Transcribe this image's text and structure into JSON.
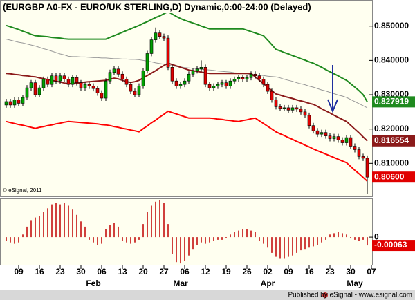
{
  "chart_data": {
    "type": "candlestick",
    "title": "(EURGBP A0-FX - EURO/UK STERLING,D) Dynamic,0:00-24:00 (Delayed)",
    "copyright": "© eSignal, 2011",
    "footer": "Published by eSignal - www.esignal.com",
    "categories": [
      null,
      null,
      null,
      "09",
      null,
      null,
      null,
      null,
      "16",
      null,
      null,
      null,
      null,
      "23",
      null,
      null,
      null,
      null,
      "30",
      null,
      null,
      null,
      null,
      "06",
      null,
      null,
      null,
      null,
      "13",
      null,
      null,
      null,
      null,
      "20",
      null,
      null,
      null,
      null,
      "27",
      null,
      null,
      null,
      null,
      "06",
      null,
      null,
      null,
      null,
      "12",
      null,
      null,
      null,
      null,
      "19",
      null,
      null,
      null,
      null,
      "26",
      null,
      null,
      null,
      null,
      "02",
      null,
      null,
      null,
      null,
      "09",
      null,
      null,
      null,
      null,
      "16",
      null,
      null,
      null,
      null,
      "23",
      null,
      null,
      null,
      null,
      "30",
      null,
      null,
      null,
      null,
      "07"
    ],
    "month_labels": [
      null,
      null,
      null,
      null,
      null,
      null,
      null,
      null,
      null,
      null,
      null,
      null,
      null,
      null,
      null,
      null,
      null,
      null,
      null,
      null,
      null,
      "Feb",
      null,
      null,
      null,
      null,
      null,
      null,
      null,
      null,
      null,
      null,
      null,
      null,
      null,
      null,
      null,
      null,
      null,
      null,
      null,
      null,
      "Mar",
      null,
      null,
      null,
      null,
      null,
      null,
      null,
      null,
      null,
      null,
      null,
      null,
      null,
      null,
      null,
      null,
      null,
      null,
      null,
      null,
      "Apr",
      null,
      null,
      null,
      null,
      null,
      null,
      null,
      null,
      null,
      null,
      null,
      null,
      null,
      null,
      null,
      null,
      null,
      null,
      null,
      null,
      "May",
      null,
      null,
      null,
      null
    ],
    "up_color": "#00a000",
    "down_color": "#e00000",
    "candles": {
      "open": [
        0.827,
        0.828,
        0.827,
        0.8285,
        0.8275,
        0.8292,
        0.832,
        0.8335,
        0.83,
        0.832,
        0.8345,
        0.833,
        0.8355,
        0.834,
        0.8355,
        0.8345,
        0.833,
        0.835,
        0.8335,
        0.832,
        0.833,
        0.8325,
        0.8318,
        0.8305,
        0.829,
        0.834,
        0.8365,
        0.8375,
        0.836,
        0.8345,
        0.833,
        0.831,
        0.83,
        0.8325,
        0.837,
        0.842,
        0.846,
        0.848,
        0.847,
        0.8465,
        0.838,
        0.834,
        0.8325,
        0.833,
        0.834,
        0.836,
        0.837,
        0.8375,
        0.838,
        0.833,
        0.832,
        0.8325,
        0.833,
        0.8335,
        0.8325,
        0.834,
        0.8345,
        0.835,
        0.8345,
        0.835,
        0.836,
        0.8355,
        0.8345,
        0.833,
        0.831,
        0.8285,
        0.8265,
        0.826,
        0.8262,
        0.8255,
        0.8262,
        0.8258,
        0.825,
        0.824,
        0.821,
        0.8195,
        0.8185,
        0.819,
        0.818,
        0.8172,
        0.8178,
        0.8168,
        0.816,
        0.8175,
        0.815,
        0.814,
        0.812,
        0.8115,
        null
      ],
      "high": [
        0.8288,
        0.8288,
        0.8293,
        0.8293,
        0.83,
        0.8328,
        0.8343,
        0.8343,
        0.8328,
        0.8353,
        0.8353,
        0.8363,
        0.8363,
        0.8363,
        0.8363,
        0.8353,
        0.8358,
        0.8358,
        0.8343,
        0.8338,
        0.8338,
        0.8333,
        0.8326,
        0.8313,
        0.8348,
        0.8373,
        0.8383,
        0.8383,
        0.8368,
        0.8353,
        0.8338,
        0.8318,
        0.8333,
        0.8378,
        0.8428,
        0.8468,
        0.8496,
        0.8488,
        0.8478,
        0.8473,
        0.8388,
        0.8348,
        0.8338,
        0.8348,
        0.8368,
        0.8378,
        0.8383,
        0.84,
        0.8388,
        0.8338,
        0.8333,
        0.8338,
        0.8343,
        0.8343,
        0.8348,
        0.8353,
        0.8358,
        0.8358,
        0.8358,
        0.8368,
        0.8368,
        0.8363,
        0.8353,
        0.8338,
        0.8318,
        0.8293,
        0.8273,
        0.827,
        0.827,
        0.827,
        0.827,
        0.8266,
        0.8258,
        0.8248,
        0.8218,
        0.8203,
        0.8198,
        0.8198,
        0.8188,
        0.8186,
        0.8186,
        0.8176,
        0.8183,
        0.8183,
        0.8158,
        0.8148,
        0.8128,
        0.8123,
        null
      ],
      "low": [
        0.8262,
        0.8262,
        0.8262,
        0.8267,
        0.8267,
        0.8284,
        0.8312,
        0.8292,
        0.8292,
        0.8312,
        0.8322,
        0.8322,
        0.8332,
        0.8332,
        0.8337,
        0.8322,
        0.8322,
        0.8327,
        0.8312,
        0.8312,
        0.8317,
        0.831,
        0.8297,
        0.8282,
        0.8282,
        0.8332,
        0.8357,
        0.8352,
        0.8337,
        0.8322,
        0.8302,
        0.8292,
        0.8292,
        0.8317,
        0.8362,
        0.8412,
        0.8452,
        0.8462,
        0.8457,
        0.8372,
        0.8332,
        0.8317,
        0.8317,
        0.8322,
        0.8332,
        0.8352,
        0.8362,
        0.8367,
        0.8322,
        0.8312,
        0.8312,
        0.8317,
        0.8322,
        0.8317,
        0.8317,
        0.8332,
        0.8337,
        0.8337,
        0.8337,
        0.8342,
        0.8347,
        0.8337,
        0.8322,
        0.8302,
        0.8277,
        0.8257,
        0.8252,
        0.8252,
        0.8247,
        0.8247,
        0.825,
        0.8242,
        0.8232,
        0.8202,
        0.8187,
        0.8177,
        0.8177,
        0.8172,
        0.8164,
        0.8164,
        0.816,
        0.8152,
        0.8152,
        0.8142,
        0.8132,
        0.8112,
        0.8107,
        0.801,
        null
      ],
      "close": [
        0.828,
        0.827,
        0.8285,
        0.8275,
        0.8292,
        0.832,
        0.8335,
        0.83,
        0.832,
        0.8345,
        0.833,
        0.8355,
        0.834,
        0.8355,
        0.8345,
        0.833,
        0.835,
        0.8335,
        0.832,
        0.833,
        0.8325,
        0.8318,
        0.8305,
        0.829,
        0.834,
        0.8365,
        0.8375,
        0.836,
        0.8345,
        0.833,
        0.831,
        0.83,
        0.8325,
        0.837,
        0.842,
        0.846,
        0.848,
        0.847,
        0.8465,
        0.838,
        0.834,
        0.8325,
        0.833,
        0.834,
        0.836,
        0.837,
        0.8375,
        0.838,
        0.833,
        0.832,
        0.8325,
        0.833,
        0.8335,
        0.8325,
        0.834,
        0.8345,
        0.835,
        0.8345,
        0.835,
        0.836,
        0.8355,
        0.8345,
        0.833,
        0.831,
        0.8285,
        0.8265,
        0.826,
        0.8262,
        0.8255,
        0.8262,
        0.8258,
        0.825,
        0.824,
        0.821,
        0.8195,
        0.8185,
        0.819,
        0.818,
        0.8172,
        0.8178,
        0.8168,
        0.816,
        0.8175,
        0.815,
        0.814,
        0.812,
        0.8115,
        0.806,
        null
      ],
      "value_labels": [
        null,
        null,
        null,
        null,
        null,
        null,
        null,
        null,
        null,
        null,
        null,
        null,
        null,
        null,
        null,
        null,
        null,
        null,
        null,
        null,
        null,
        null,
        null,
        null,
        null,
        null,
        null,
        null,
        null,
        null,
        null,
        null,
        null,
        null,
        null,
        null,
        null,
        null,
        null,
        null,
        null,
        null,
        null,
        null,
        null,
        null,
        null,
        null,
        null,
        null,
        null,
        null,
        null,
        null,
        null,
        null,
        null,
        null,
        null,
        null,
        null,
        null,
        null,
        null,
        null,
        null,
        null,
        null,
        null,
        null,
        null,
        null,
        null,
        null,
        null,
        null,
        null,
        null,
        null,
        null,
        null,
        null,
        null,
        null,
        null,
        null,
        null,
        "0.80600",
        null
      ],
      "tag_color": "#e00000"
    },
    "series": [
      {
        "color": "#999999",
        "values": [
          0.8462,
          0.8459,
          0.8456,
          0.8453,
          0.8451,
          0.8448,
          0.8445,
          0.8442,
          0.8438,
          0.8434,
          0.8431,
          0.8427,
          0.8423,
          0.8419,
          0.8416,
          0.8412,
          0.8411,
          0.8411,
          0.841,
          0.841,
          0.8409,
          0.8408,
          0.8408,
          0.8407,
          0.8407,
          0.8406,
          0.8405,
          0.8405,
          0.8404,
          0.8404,
          0.8403,
          0.8403,
          0.8402,
          0.84,
          0.8398,
          0.8396,
          0.8393,
          0.8391,
          0.8389,
          0.8387,
          0.8384,
          0.8382,
          0.8381,
          0.8379,
          0.8378,
          0.8377,
          0.8376,
          0.8374,
          0.8373,
          0.8372,
          0.8371,
          0.8369,
          0.8368,
          0.8367,
          0.8366,
          0.8364,
          0.8363,
          0.8362,
          0.8361,
          0.8359,
          0.8358,
          0.8357,
          0.8356,
          0.8354,
          0.8353,
          0.8352,
          0.8349,
          0.8345,
          0.8342,
          0.8339,
          0.8335,
          0.8332,
          0.8329,
          0.8325,
          0.8322,
          0.8318,
          0.8314,
          0.8311,
          0.8307,
          0.8303,
          0.8299,
          0.8296,
          0.8292,
          0.8286,
          0.828,
          0.8274,
          0.8268,
          0.8262,
          null
        ],
        "width": 1
      },
      {
        "color": "#1f8a1f",
        "tag": true,
        "values": [
          0.8502,
          0.8498,
          0.8494,
          0.849,
          0.8485,
          0.8481,
          0.8476,
          0.8472,
          0.8471,
          0.847,
          0.8469,
          0.8467,
          0.8466,
          0.8465,
          0.8463,
          0.8462,
          0.8462,
          0.8462,
          0.8462,
          0.8462,
          0.8462,
          0.8462,
          0.8462,
          0.8462,
          0.8462,
          0.8467,
          0.8472,
          0.8477,
          0.8482,
          0.8487,
          0.8492,
          0.8497,
          0.8502,
          0.8508,
          0.8513,
          0.8519,
          0.8525,
          0.853,
          0.8536,
          0.8542,
          0.8535,
          0.8528,
          0.8522,
          0.8517,
          0.8513,
          0.8509,
          0.8505,
          0.85,
          0.8496,
          0.8492,
          0.8492,
          0.8492,
          0.8492,
          0.8492,
          0.8492,
          0.8492,
          0.8492,
          0.8492,
          0.8488,
          0.8484,
          0.848,
          0.8476,
          0.8472,
          0.8459,
          0.8446,
          0.8432,
          0.8428,
          0.8423,
          0.8419,
          0.8414,
          0.841,
          0.8405,
          0.8401,
          0.8396,
          0.8392,
          0.8386,
          0.838,
          0.8373,
          0.8367,
          0.8361,
          0.8355,
          0.8348,
          0.8342,
          0.8332,
          0.8322,
          0.8312,
          0.83,
          0.827919,
          null
        ],
        "width": 2
      },
      {
        "color": "#8b1a1a",
        "tag": true,
        "values": [
          0.8362,
          0.8361,
          0.8359,
          0.8358,
          0.8356,
          0.8355,
          0.8353,
          0.8352,
          0.8349,
          0.8347,
          0.8344,
          0.8342,
          0.8339,
          0.8337,
          0.8334,
          0.8332,
          0.8333,
          0.8334,
          0.8335,
          0.8337,
          0.8338,
          0.8339,
          0.834,
          0.8341,
          0.8342,
          0.8345,
          0.8348,
          0.8346,
          0.8342,
          0.8338,
          0.8336,
          0.8338,
          0.8342,
          0.8349,
          0.8356,
          0.8363,
          0.837,
          0.8378,
          0.8385,
          0.8392,
          0.8388,
          0.8384,
          0.838,
          0.8376,
          0.8372,
          0.837,
          0.8368,
          0.8366,
          0.8364,
          0.8362,
          0.8362,
          0.8362,
          0.8362,
          0.8362,
          0.8362,
          0.8362,
          0.8362,
          0.8362,
          0.8362,
          0.8362,
          0.8352,
          0.8342,
          0.8332,
          0.8322,
          0.8312,
          0.8302,
          0.8299,
          0.8295,
          0.8292,
          0.8289,
          0.8285,
          0.8282,
          0.8279,
          0.8275,
          0.8272,
          0.8266,
          0.8259,
          0.8253,
          0.8247,
          0.824,
          0.8234,
          0.8228,
          0.8222,
          0.8211,
          0.82,
          0.8189,
          0.8177,
          0.816554,
          null
        ],
        "width": 2
      },
      {
        "color": "#ff0000",
        "values": [
          0.8222,
          0.8219,
          0.8216,
          0.8213,
          0.8211,
          0.8208,
          0.8205,
          0.8202,
          0.8205,
          0.8207,
          0.821,
          0.8212,
          0.8215,
          0.8217,
          0.822,
          0.8222,
          0.8221,
          0.822,
          0.8219,
          0.8218,
          0.8217,
          0.8216,
          0.8215,
          0.8213,
          0.8212,
          0.821,
          0.8207,
          0.8205,
          0.8202,
          0.82,
          0.8197,
          0.8195,
          0.8192,
          0.8201,
          0.8209,
          0.8218,
          0.8226,
          0.8235,
          0.8243,
          0.8252,
          0.8248,
          0.8244,
          0.824,
          0.8236,
          0.8232,
          0.8232,
          0.8232,
          0.8232,
          0.8232,
          0.8232,
          0.8231,
          0.8229,
          0.8228,
          0.8226,
          0.8225,
          0.8223,
          0.8222,
          0.8225,
          0.8227,
          0.823,
          0.8232,
          0.8224,
          0.8216,
          0.8208,
          0.82,
          0.8192,
          0.8186,
          0.8181,
          0.8175,
          0.817,
          0.8164,
          0.8159,
          0.8153,
          0.8148,
          0.8142,
          0.8137,
          0.8132,
          0.8127,
          0.8122,
          0.8117,
          0.8112,
          0.8107,
          0.8102,
          0.8091,
          0.808,
          0.807,
          0.8059,
          0.8048,
          null
        ],
        "width": 2
      }
    ],
    "ylim": [
      0.8006,
      0.8572
    ],
    "yticks": [
      {
        "value": 0.85,
        "label": "0.850000"
      },
      {
        "value": 0.84,
        "label": "0.840000"
      },
      {
        "value": 0.83,
        "label": "0.830000"
      },
      {
        "value": 0.82,
        "label": "0.820000"
      },
      {
        "value": 0.81,
        "label": "0.810000"
      }
    ],
    "indicator": {
      "type": "bar",
      "color": "#c00000",
      "ylim": [
        -0.0021,
        0.0029
      ],
      "yticks": [
        0
      ],
      "values": [
        -0.0003,
        -0.0004,
        -0.0005,
        -0.0004,
        0.0002,
        0.0008,
        0.0013,
        0.0015,
        0.0016,
        0.0019,
        0.0022,
        0.0025,
        0.0026,
        0.0025,
        0.0026,
        0.0024,
        0.0021,
        0.0017,
        0.0012,
        0.0008,
        -0.0002,
        -0.0004,
        -0.0006,
        -0.0005,
        0.0006,
        0.0009,
        0.0011,
        0.0008,
        -0.0003,
        -0.0004,
        -0.0005,
        -0.0004,
        -0.0002,
        0.001,
        0.0019,
        0.0024,
        0.0027,
        0.0028,
        0.0026,
        0.001,
        -0.0013,
        -0.0019,
        -0.002,
        -0.0018,
        -0.0014,
        -0.0009,
        -0.0006,
        -0.0004,
        -0.0005,
        -0.0004,
        -0.0003,
        -0.0002,
        -0.0002,
        -0.0001,
        0.0002,
        0.0004,
        0.0005,
        0.0006,
        0.0006,
        0.0005,
        0.0004,
        -0.0003,
        -0.0005,
        -0.0008,
        -0.0012,
        -0.0015,
        -0.0016,
        -0.0016,
        -0.0015,
        -0.0014,
        -0.0012,
        -0.001,
        -0.0009,
        -0.0008,
        -0.0007,
        -0.0006,
        -0.0004,
        -0.0002,
        0.0002,
        0.0003,
        0.0004,
        0.0003,
        0.0002,
        -0.0001,
        -0.0002,
        -0.0003,
        -0.0002,
        -0.00063,
        null
      ],
      "tag_color": "#e00000"
    }
  }
}
